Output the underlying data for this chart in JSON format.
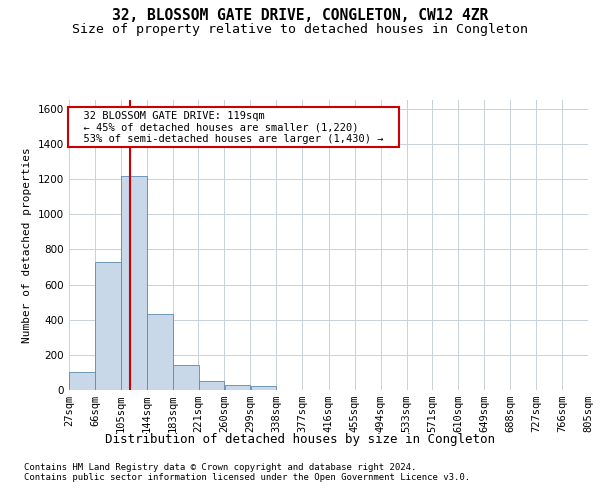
{
  "title_line1": "32, BLOSSOM GATE DRIVE, CONGLETON, CW12 4ZR",
  "title_line2": "Size of property relative to detached houses in Congleton",
  "xlabel": "Distribution of detached houses by size in Congleton",
  "ylabel": "Number of detached properties",
  "footnote": "Contains HM Land Registry data © Crown copyright and database right 2024.\nContains public sector information licensed under the Open Government Licence v3.0.",
  "bar_edges": [
    27,
    66,
    105,
    144,
    183,
    221,
    260,
    299,
    338,
    377,
    416,
    455,
    494,
    533,
    571,
    610,
    649,
    688,
    727,
    766,
    805
  ],
  "bar_heights": [
    100,
    730,
    1220,
    430,
    140,
    50,
    30,
    20,
    0,
    0,
    0,
    0,
    0,
    0,
    0,
    0,
    0,
    0,
    0,
    0
  ],
  "bar_color": "#c8d8e8",
  "bar_edgecolor": "#5a8ab0",
  "grid_color": "#c8d0d8",
  "property_line_x": 119,
  "annotation_text": "  32 BLOSSOM GATE DRIVE: 119sqm  \n  ← 45% of detached houses are smaller (1,220)  \n  53% of semi-detached houses are larger (1,430) →  ",
  "annotation_box_color": "#ffffff",
  "annotation_border_color": "#cc0000",
  "vline_color": "#cc0000",
  "ylim": [
    0,
    1650
  ],
  "yticks": [
    0,
    200,
    400,
    600,
    800,
    1000,
    1200,
    1400,
    1600
  ],
  "background_color": "#ffffff",
  "title1_fontsize": 10.5,
  "title2_fontsize": 9.5,
  "ylabel_fontsize": 8,
  "xlabel_fontsize": 9,
  "footnote_fontsize": 6.5,
  "tick_fontsize": 7.5,
  "annot_fontsize": 7.5
}
